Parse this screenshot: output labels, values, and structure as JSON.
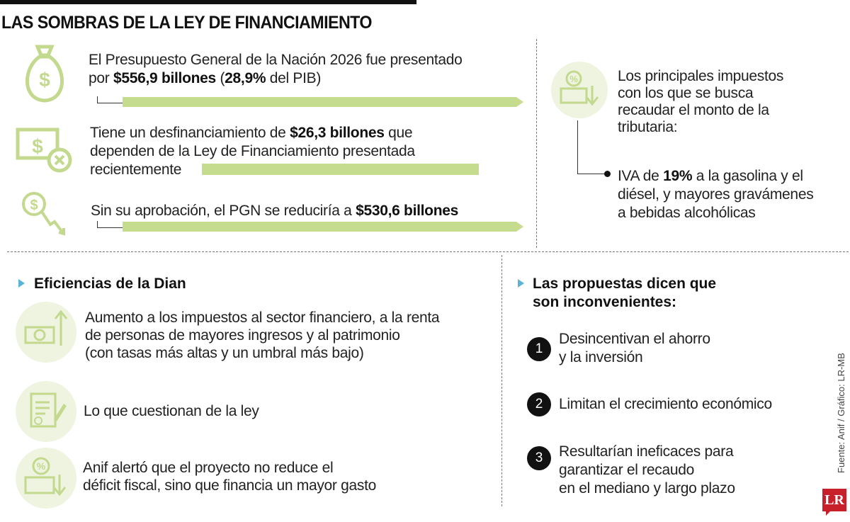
{
  "title": "LAS SOMBRAS DE LA LEY DE FINANCIAMIENTO",
  "top": [
    {
      "icon": "money-bag-icon",
      "pre": "El Presupuesto General de la Nación 2026 fue presentado",
      "line2_pre": "por ",
      "bold1": "$556,9 billones",
      "mid": " (",
      "bold2": "28,9%",
      "post": " del PIB)",
      "bar_value": 556.9
    },
    {
      "icon": "banknote-cancel-icon",
      "line1_pre": "Tiene un desfinanciamiento de ",
      "bold1": "$26,3 billones",
      "line1_post": " que",
      "line2": "dependen de la Ley de Financiamiento presentada",
      "line3": "recientemente"
    },
    {
      "icon": "magnifier-down-icon",
      "pre": "Sin su aprobación, el PGN se reduciría a ",
      "bold1": "$530,6 billones",
      "bar_value": 530.6
    }
  ],
  "right": {
    "icon": "percent-money-down-icon",
    "text_lines": [
      "Los principales impuestos",
      "con los que se busca",
      "recaudar el monto de la",
      "tributaria:"
    ],
    "bullet_pre": "IVA de ",
    "bullet_bold": "19%",
    "bullet_post1": " a la gasolina y el",
    "bullet_line2": "diésel, y mayores gravámenes",
    "bullet_line3": "a bebidas alcohólicas"
  },
  "dian": {
    "heading": "Eficiencias de la Dian",
    "items": [
      {
        "icon": "money-up-icon",
        "lines": [
          "Aumento a los impuestos al sector financiero, a la renta",
          "de personas de mayores ingresos y al patrimonio",
          "(con tasas más altas y un umbral más bajo)"
        ]
      },
      {
        "icon": "document-check-icon",
        "lines": [
          "Lo que cuestionan de la ley"
        ]
      },
      {
        "icon": "percent-money-down-icon",
        "lines": [
          "Anif alertó que el proyecto no reduce el",
          "déficit fiscal, sino que financia un mayor gasto"
        ]
      }
    ]
  },
  "propuestas": {
    "heading_lines": [
      "Las propuestas dicen que",
      "son inconvenientes:"
    ],
    "items": [
      {
        "n": "1",
        "lines": [
          "Desincentivan el ahorro",
          "y la inversión"
        ]
      },
      {
        "n": "2",
        "lines": [
          "Limitan el crecimiento económico"
        ]
      },
      {
        "n": "3",
        "lines": [
          "Resultarían ineficaces para",
          "garantizar el recaudo",
          "en el mediano y largo plazo"
        ]
      }
    ]
  },
  "source": "Fuente: Anif / Gráfico: LR-MB",
  "logo": "LR",
  "colors": {
    "green": "#c5dc8f",
    "icon_green": "#c3d98e",
    "accent_blue": "#5bb4d8",
    "logo_red": "#c8202a"
  }
}
